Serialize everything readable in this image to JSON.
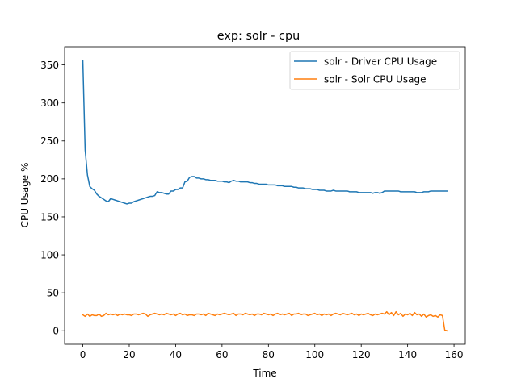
{
  "chart_data": {
    "type": "line",
    "title": "exp: solr - cpu",
    "xlabel": "Time",
    "ylabel": "CPU Usage %",
    "xlim": [
      -7.85,
      164.85
    ],
    "ylim": [
      -17.8,
      374.0
    ],
    "xticks": [
      0,
      20,
      40,
      60,
      80,
      100,
      120,
      140,
      160
    ],
    "yticks": [
      0,
      50,
      100,
      150,
      200,
      250,
      300,
      350
    ],
    "grid": false,
    "legend_position": "upper right",
    "series": [
      {
        "name": "solr - Driver CPU Usage",
        "color": "#1f77b4",
        "x": [
          0,
          1,
          2,
          3,
          4,
          5,
          6,
          7,
          8,
          9,
          10,
          11,
          12,
          13,
          14,
          15,
          16,
          17,
          18,
          19,
          20,
          21,
          22,
          23,
          24,
          25,
          26,
          27,
          28,
          29,
          30,
          31,
          32,
          33,
          34,
          35,
          36,
          37,
          38,
          39,
          40,
          41,
          42,
          43,
          44,
          45,
          46,
          47,
          48,
          49,
          50,
          51,
          52,
          53,
          54,
          55,
          56,
          57,
          58,
          59,
          60,
          61,
          62,
          63,
          64,
          65,
          66,
          67,
          68,
          69,
          70,
          71,
          72,
          73,
          74,
          75,
          76,
          77,
          78,
          79,
          80,
          81,
          82,
          83,
          84,
          85,
          86,
          87,
          88,
          89,
          90,
          91,
          92,
          93,
          94,
          95,
          96,
          97,
          98,
          99,
          100,
          101,
          102,
          103,
          104,
          105,
          106,
          107,
          108,
          109,
          110,
          111,
          112,
          113,
          114,
          115,
          116,
          117,
          118,
          119,
          120,
          121,
          122,
          123,
          124,
          125,
          126,
          127,
          128,
          129,
          130,
          131,
          132,
          133,
          134,
          135,
          136,
          137,
          138,
          139,
          140,
          141,
          142,
          143,
          144,
          145,
          146,
          147,
          148,
          149,
          150,
          151,
          152,
          153,
          154,
          155,
          156,
          157
        ],
        "y": [
          356,
          238,
          205,
          190,
          187,
          185,
          180,
          177,
          175,
          173,
          171,
          170,
          174,
          173,
          172,
          171,
          170,
          169,
          168,
          167,
          168,
          168,
          170,
          171,
          172,
          173,
          174,
          175,
          176,
          177,
          177,
          178,
          183,
          182,
          182,
          181,
          180,
          180,
          184,
          184,
          186,
          186,
          188,
          188,
          196,
          197,
          202,
          203,
          203,
          201,
          201,
          200,
          200,
          199,
          199,
          198,
          198,
          198,
          197,
          197,
          197,
          196,
          196,
          195,
          197,
          198,
          197,
          197,
          196,
          196,
          196,
          196,
          195,
          195,
          194,
          194,
          193,
          193,
          193,
          193,
          192,
          192,
          192,
          192,
          191,
          191,
          191,
          190,
          190,
          190,
          190,
          189,
          189,
          188,
          188,
          188,
          187,
          187,
          187,
          186,
          186,
          186,
          185,
          185,
          185,
          184,
          184,
          184,
          185,
          184,
          184,
          184,
          184,
          184,
          184,
          183,
          183,
          183,
          183,
          182,
          182,
          182,
          182,
          182,
          182,
          181,
          182,
          182,
          181,
          182,
          184,
          184,
          184,
          184,
          184,
          184,
          184,
          183,
          183,
          183,
          183,
          183,
          183,
          183,
          182,
          182,
          182,
          183,
          183,
          183,
          184,
          184,
          184,
          184,
          184,
          184,
          184,
          184
        ]
      },
      {
        "name": "solr - Solr CPU Usage",
        "color": "#ff7f0e",
        "x": [
          0,
          1,
          2,
          3,
          4,
          5,
          6,
          7,
          8,
          9,
          10,
          11,
          12,
          13,
          14,
          15,
          16,
          17,
          18,
          19,
          20,
          21,
          22,
          23,
          24,
          25,
          26,
          27,
          28,
          29,
          30,
          31,
          32,
          33,
          34,
          35,
          36,
          37,
          38,
          39,
          40,
          41,
          42,
          43,
          44,
          45,
          46,
          47,
          48,
          49,
          50,
          51,
          52,
          53,
          54,
          55,
          56,
          57,
          58,
          59,
          60,
          61,
          62,
          63,
          64,
          65,
          66,
          67,
          68,
          69,
          70,
          71,
          72,
          73,
          74,
          75,
          76,
          77,
          78,
          79,
          80,
          81,
          82,
          83,
          84,
          85,
          86,
          87,
          88,
          89,
          90,
          91,
          92,
          93,
          94,
          95,
          96,
          97,
          98,
          99,
          100,
          101,
          102,
          103,
          104,
          105,
          106,
          107,
          108,
          109,
          110,
          111,
          112,
          113,
          114,
          115,
          116,
          117,
          118,
          119,
          120,
          121,
          122,
          123,
          124,
          125,
          126,
          127,
          128,
          129,
          130,
          131,
          132,
          133,
          134,
          135,
          136,
          137,
          138,
          139,
          140,
          141,
          142,
          143,
          144,
          145,
          146,
          147,
          148,
          149,
          150,
          151,
          152,
          153,
          154,
          155,
          156,
          157
        ],
        "y": [
          21,
          19,
          22,
          19,
          21,
          20,
          20,
          22,
          19,
          20,
          23,
          21,
          22,
          21,
          22,
          20,
          22,
          21,
          22,
          21,
          21,
          20,
          22,
          22,
          21,
          22,
          23,
          22,
          19,
          21,
          22,
          23,
          22,
          21,
          22,
          21,
          23,
          22,
          21,
          22,
          20,
          22,
          23,
          21,
          22,
          20,
          21,
          21,
          20,
          22,
          22,
          21,
          22,
          20,
          23,
          22,
          21,
          20,
          22,
          21,
          22,
          23,
          22,
          21,
          22,
          23,
          20,
          22,
          22,
          21,
          23,
          22,
          21,
          22,
          20,
          22,
          22,
          21,
          23,
          22,
          21,
          22,
          20,
          22,
          23,
          21,
          22,
          21,
          22,
          23,
          20,
          22,
          22,
          23,
          21,
          22,
          22,
          20,
          21,
          22,
          23,
          21,
          22,
          20,
          22,
          21,
          22,
          20,
          22,
          23,
          22,
          21,
          23,
          22,
          21,
          22,
          23,
          21,
          22,
          20,
          22,
          21,
          22,
          23,
          21,
          20,
          22,
          21,
          22,
          23,
          22,
          25,
          21,
          24,
          20,
          25,
          21,
          23,
          19,
          22,
          21,
          23,
          20,
          24,
          21,
          22,
          19,
          22,
          18,
          20,
          21,
          19,
          20,
          18,
          21,
          20,
          1,
          0
        ]
      }
    ]
  }
}
